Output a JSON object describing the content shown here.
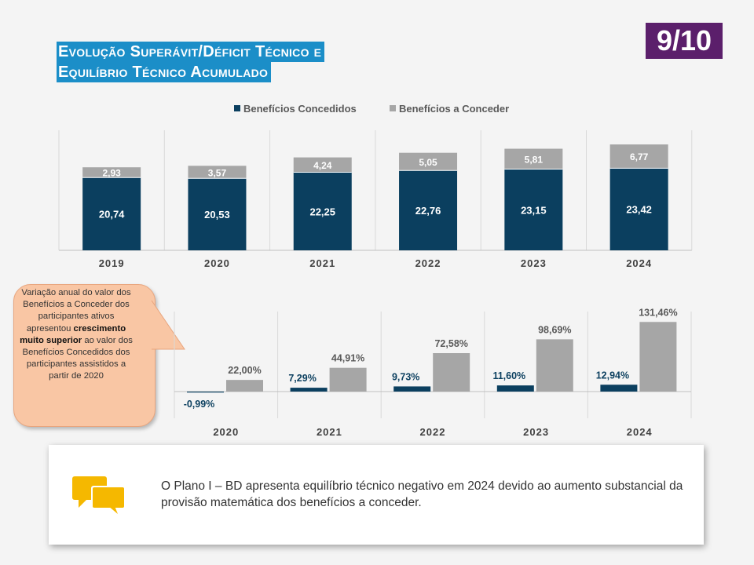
{
  "title": {
    "line1": "Evolução Superávit/Déficit Técnico e",
    "line2": "Equilíbrio Técnico Acumulado"
  },
  "page_badge": "9/10",
  "callout": {
    "pre": "Variação anual do valor dos Benefícios a Conceder dos participantes ativos apresentou",
    "bold": "crescimento muito superior",
    "post": "ao valor dos Benefícios Concedidos dos participantes assistidos a partir de 2020"
  },
  "note": {
    "text": "O Plano I – BD apresenta equilíbrio técnico negativo em 2024 devido ao aumento substancial da provisão matemática dos benefícios a conceder.",
    "icon": "chat-bubbles-icon"
  },
  "colors": {
    "concedidos": "#0b3f5f",
    "a_conceder": "#a6a6a6",
    "title_bg": "#1b8ec8",
    "badge_bg": "#5b1f6b",
    "callout_bg": "#f9c6a4",
    "icon": "#f5b800"
  },
  "chart_data": [
    {
      "type": "bar",
      "stacked": true,
      "categories": [
        "2019",
        "2020",
        "2021",
        "2022",
        "2023",
        "2024"
      ],
      "series": [
        {
          "name": "Benefícios Concedidos",
          "values": [
            20.74,
            20.53,
            22.25,
            22.76,
            23.15,
            23.42
          ],
          "labels": [
            "20,74",
            "20,53",
            "22,25",
            "22,76",
            "23,15",
            "23,42"
          ]
        },
        {
          "name": "Benefícios a Conceder",
          "values": [
            2.93,
            3.57,
            4.24,
            5.05,
            5.81,
            6.77
          ],
          "labels": [
            "2,93",
            "3,57",
            "4,24",
            "5,05",
            "5,81",
            "6,77"
          ]
        }
      ],
      "legend": "top-center",
      "grid": false
    },
    {
      "type": "bar",
      "categories": [
        "2020",
        "2021",
        "2022",
        "2023",
        "2024"
      ],
      "series": [
        {
          "values": [
            -0.99,
            7.29,
            9.73,
            11.6,
            12.94
          ],
          "labels": [
            "-0,99%",
            "7,29%",
            "9,73%",
            "11,60%",
            "12,94%"
          ]
        },
        {
          "values": [
            22.0,
            44.91,
            72.58,
            98.69,
            131.46
          ],
          "labels": [
            "22,00%",
            "44,91%",
            "72,58%",
            "98,69%",
            "131,46%"
          ]
        }
      ],
      "grid": false
    }
  ]
}
